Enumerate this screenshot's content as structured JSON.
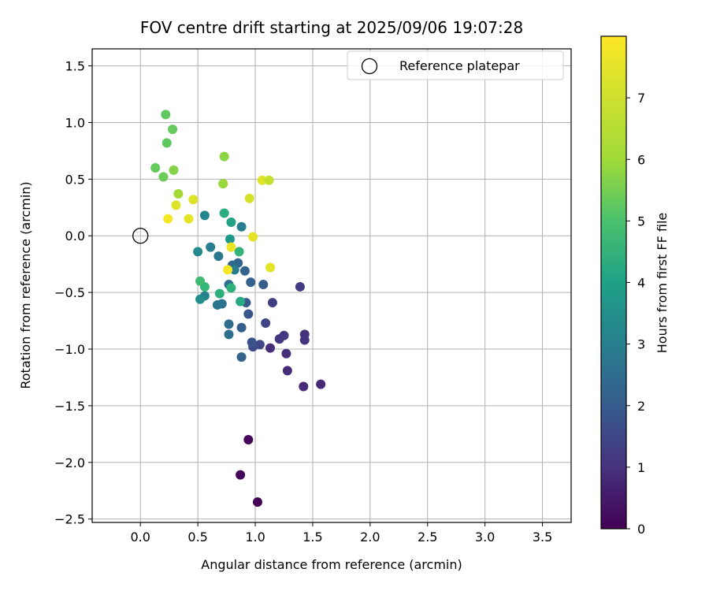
{
  "chart_data": {
    "type": "scatter",
    "title": "FOV centre drift starting at 2025/09/06 19:07:28",
    "xlabel": "Angular distance from reference (arcmin)",
    "ylabel": "Rotation from reference (arcmin)",
    "xlim": [
      -0.42,
      3.75
    ],
    "ylim": [
      -2.53,
      1.65
    ],
    "xticks": [
      0.0,
      0.5,
      1.0,
      1.5,
      2.0,
      2.5,
      3.0,
      3.5
    ],
    "xtick_labels": [
      "0.0",
      "0.5",
      "1.0",
      "1.5",
      "2.0",
      "2.5",
      "3.0",
      "3.5"
    ],
    "yticks": [
      1.5,
      1.0,
      0.5,
      0.0,
      -0.5,
      -1.0,
      -1.5,
      -2.0,
      -2.5
    ],
    "ytick_labels": [
      "1.5",
      "1.0",
      "0.5",
      "0.0",
      "−0.5",
      "−1.0",
      "−1.5",
      "−2.0",
      "−2.5"
    ],
    "grid": true,
    "legend": {
      "position": "top-right",
      "entries": [
        "Reference platepar"
      ]
    },
    "reference_point": {
      "x": 0.0,
      "y": 0.0,
      "label": "Reference platepar"
    },
    "colorbar": {
      "label": "Hours from first FF file",
      "colormap": "viridis",
      "range": [
        0,
        8
      ],
      "ticks": [
        0,
        1,
        2,
        3,
        4,
        5,
        6,
        7
      ],
      "tick_labels": [
        "0",
        "1",
        "2",
        "3",
        "4",
        "5",
        "6",
        "7"
      ]
    },
    "points": [
      {
        "x": 1.02,
        "y": -2.35,
        "c": 0.05
      },
      {
        "x": 0.87,
        "y": -2.11,
        "c": 0.1
      },
      {
        "x": 0.94,
        "y": -1.8,
        "c": 0.15
      },
      {
        "x": 1.57,
        "y": -1.31,
        "c": 0.9
      },
      {
        "x": 1.42,
        "y": -1.33,
        "c": 0.95
      },
      {
        "x": 1.28,
        "y": -1.19,
        "c": 1.0
      },
      {
        "x": 1.27,
        "y": -1.04,
        "c": 1.05
      },
      {
        "x": 1.13,
        "y": -0.99,
        "c": 1.1
      },
      {
        "x": 1.43,
        "y": -0.87,
        "c": 1.15
      },
      {
        "x": 1.43,
        "y": -0.92,
        "c": 1.2
      },
      {
        "x": 1.25,
        "y": -0.88,
        "c": 1.25
      },
      {
        "x": 1.21,
        "y": -0.91,
        "c": 1.3
      },
      {
        "x": 1.39,
        "y": -0.45,
        "c": 1.4
      },
      {
        "x": 1.15,
        "y": -0.59,
        "c": 1.5
      },
      {
        "x": 1.09,
        "y": -0.77,
        "c": 1.6
      },
      {
        "x": 1.04,
        "y": -0.96,
        "c": 1.7
      },
      {
        "x": 0.98,
        "y": -0.98,
        "c": 1.8
      },
      {
        "x": 0.97,
        "y": -0.94,
        "c": 2.0
      },
      {
        "x": 0.94,
        "y": -0.69,
        "c": 2.1
      },
      {
        "x": 0.92,
        "y": -0.59,
        "c": 2.2
      },
      {
        "x": 0.88,
        "y": -0.81,
        "c": 2.4
      },
      {
        "x": 0.88,
        "y": -1.07,
        "c": 2.5
      },
      {
        "x": 0.96,
        "y": -0.41,
        "c": 2.4
      },
      {
        "x": 1.07,
        "y": -0.43,
        "c": 2.3
      },
      {
        "x": 0.91,
        "y": -0.31,
        "c": 2.5
      },
      {
        "x": 0.85,
        "y": -0.24,
        "c": 2.6
      },
      {
        "x": 0.8,
        "y": -0.26,
        "c": 2.7
      },
      {
        "x": 0.77,
        "y": -0.78,
        "c": 2.8
      },
      {
        "x": 0.77,
        "y": -0.87,
        "c": 2.9
      },
      {
        "x": 0.71,
        "y": -0.6,
        "c": 3.0
      },
      {
        "x": 0.67,
        "y": -0.61,
        "c": 3.1
      },
      {
        "x": 0.68,
        "y": -0.18,
        "c": 3.2
      },
      {
        "x": 0.61,
        "y": -0.1,
        "c": 3.4
      },
      {
        "x": 0.56,
        "y": -0.53,
        "c": 3.6
      },
      {
        "x": 0.52,
        "y": -0.56,
        "c": 3.9
      },
      {
        "x": 0.5,
        "y": -0.14,
        "c": 3.8
      },
      {
        "x": 0.77,
        "y": -0.43,
        "c": 3.0
      },
      {
        "x": 0.82,
        "y": -0.3,
        "c": 3.3
      },
      {
        "x": 0.88,
        "y": 0.08,
        "c": 3.4
      },
      {
        "x": 0.56,
        "y": 0.18,
        "c": 3.7
      },
      {
        "x": 0.78,
        "y": -0.03,
        "c": 4.3
      },
      {
        "x": 0.79,
        "y": 0.12,
        "c": 4.6
      },
      {
        "x": 0.73,
        "y": 0.2,
        "c": 4.9
      },
      {
        "x": 0.86,
        "y": -0.14,
        "c": 5.2
      },
      {
        "x": 0.79,
        "y": -0.46,
        "c": 5.1
      },
      {
        "x": 0.87,
        "y": -0.58,
        "c": 4.8
      },
      {
        "x": 0.69,
        "y": -0.51,
        "c": 5.0
      },
      {
        "x": 0.56,
        "y": -0.45,
        "c": 5.3
      },
      {
        "x": 0.52,
        "y": -0.4,
        "c": 5.5
      },
      {
        "x": 0.22,
        "y": 1.07,
        "c": 6.0
      },
      {
        "x": 0.28,
        "y": 0.94,
        "c": 6.1
      },
      {
        "x": 0.23,
        "y": 0.82,
        "c": 6.0
      },
      {
        "x": 0.13,
        "y": 0.6,
        "c": 6.1
      },
      {
        "x": 0.2,
        "y": 0.52,
        "c": 6.2
      },
      {
        "x": 0.29,
        "y": 0.58,
        "c": 6.5
      },
      {
        "x": 0.33,
        "y": 0.37,
        "c": 6.9
      },
      {
        "x": 0.73,
        "y": 0.7,
        "c": 6.6
      },
      {
        "x": 0.72,
        "y": 0.46,
        "c": 6.8
      },
      {
        "x": 0.46,
        "y": 0.32,
        "c": 7.6
      },
      {
        "x": 0.31,
        "y": 0.27,
        "c": 7.6
      },
      {
        "x": 0.24,
        "y": 0.15,
        "c": 7.9
      },
      {
        "x": 0.42,
        "y": 0.15,
        "c": 7.7
      },
      {
        "x": 0.95,
        "y": 0.33,
        "c": 7.5
      },
      {
        "x": 1.06,
        "y": 0.49,
        "c": 7.6
      },
      {
        "x": 1.12,
        "y": 0.49,
        "c": 7.3
      },
      {
        "x": 0.98,
        "y": -0.01,
        "c": 7.7
      },
      {
        "x": 1.13,
        "y": -0.28,
        "c": 7.7
      },
      {
        "x": 0.79,
        "y": -0.1,
        "c": 7.8
      },
      {
        "x": 0.76,
        "y": -0.3,
        "c": 7.9
      }
    ]
  }
}
